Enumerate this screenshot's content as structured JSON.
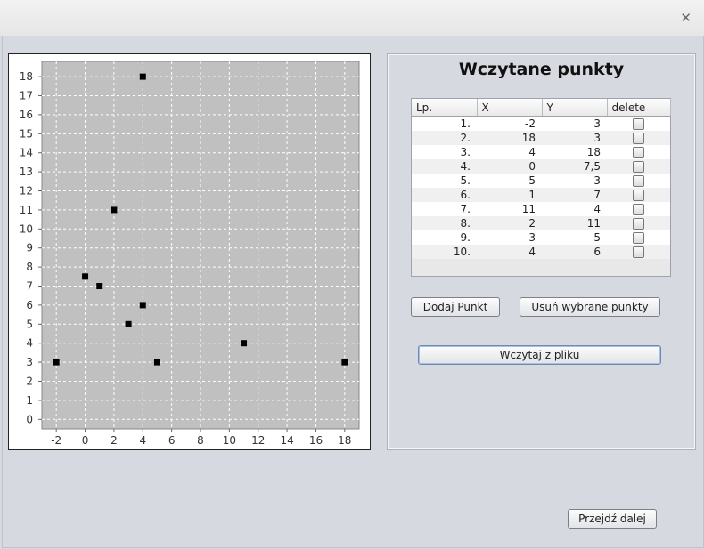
{
  "window": {
    "title": "",
    "close_icon": "close-icon"
  },
  "chart_data": {
    "type": "scatter",
    "title": "",
    "xlabel": "",
    "ylabel": "",
    "xlim": [
      -3,
      19
    ],
    "ylim": [
      -0.5,
      18.8
    ],
    "x_ticks": [
      -2,
      0,
      2,
      4,
      6,
      8,
      10,
      12,
      14,
      16,
      18
    ],
    "y_ticks": [
      0,
      1,
      2,
      3,
      4,
      5,
      6,
      7,
      8,
      9,
      10,
      11,
      12,
      13,
      14,
      15,
      16,
      17,
      18
    ],
    "grid": true,
    "plot_background": "#c0c0c0",
    "marker_color": "#000000",
    "points": [
      {
        "x": -2,
        "y": 3
      },
      {
        "x": 18,
        "y": 3
      },
      {
        "x": 4,
        "y": 18
      },
      {
        "x": 0,
        "y": 7.5
      },
      {
        "x": 5,
        "y": 3
      },
      {
        "x": 1,
        "y": 7
      },
      {
        "x": 11,
        "y": 4
      },
      {
        "x": 2,
        "y": 11
      },
      {
        "x": 3,
        "y": 5
      },
      {
        "x": 4,
        "y": 6
      }
    ]
  },
  "points_panel": {
    "title": "Wczytane punkty",
    "columns": [
      "Lp.",
      "X",
      "Y",
      "delete"
    ],
    "rows": [
      {
        "lp": "1.",
        "x": "-2",
        "y": "3",
        "delete": false
      },
      {
        "lp": "2.",
        "x": "18",
        "y": "3",
        "delete": false
      },
      {
        "lp": "3.",
        "x": "4",
        "y": "18",
        "delete": false
      },
      {
        "lp": "4.",
        "x": "0",
        "y": "7,5",
        "delete": false
      },
      {
        "lp": "5.",
        "x": "5",
        "y": "3",
        "delete": false
      },
      {
        "lp": "6.",
        "x": "1",
        "y": "7",
        "delete": false
      },
      {
        "lp": "7.",
        "x": "11",
        "y": "4",
        "delete": false
      },
      {
        "lp": "8.",
        "x": "2",
        "y": "11",
        "delete": false
      },
      {
        "lp": "9.",
        "x": "3",
        "y": "5",
        "delete": false
      },
      {
        "lp": "10.",
        "x": "4",
        "y": "6",
        "delete": false
      }
    ],
    "add_point_label": "Dodaj Punkt",
    "remove_selected_label": "Usuń wybrane punkty",
    "load_file_label": "Wczytaj z pliku"
  },
  "footer": {
    "next_label": "Przejdź dalej"
  }
}
